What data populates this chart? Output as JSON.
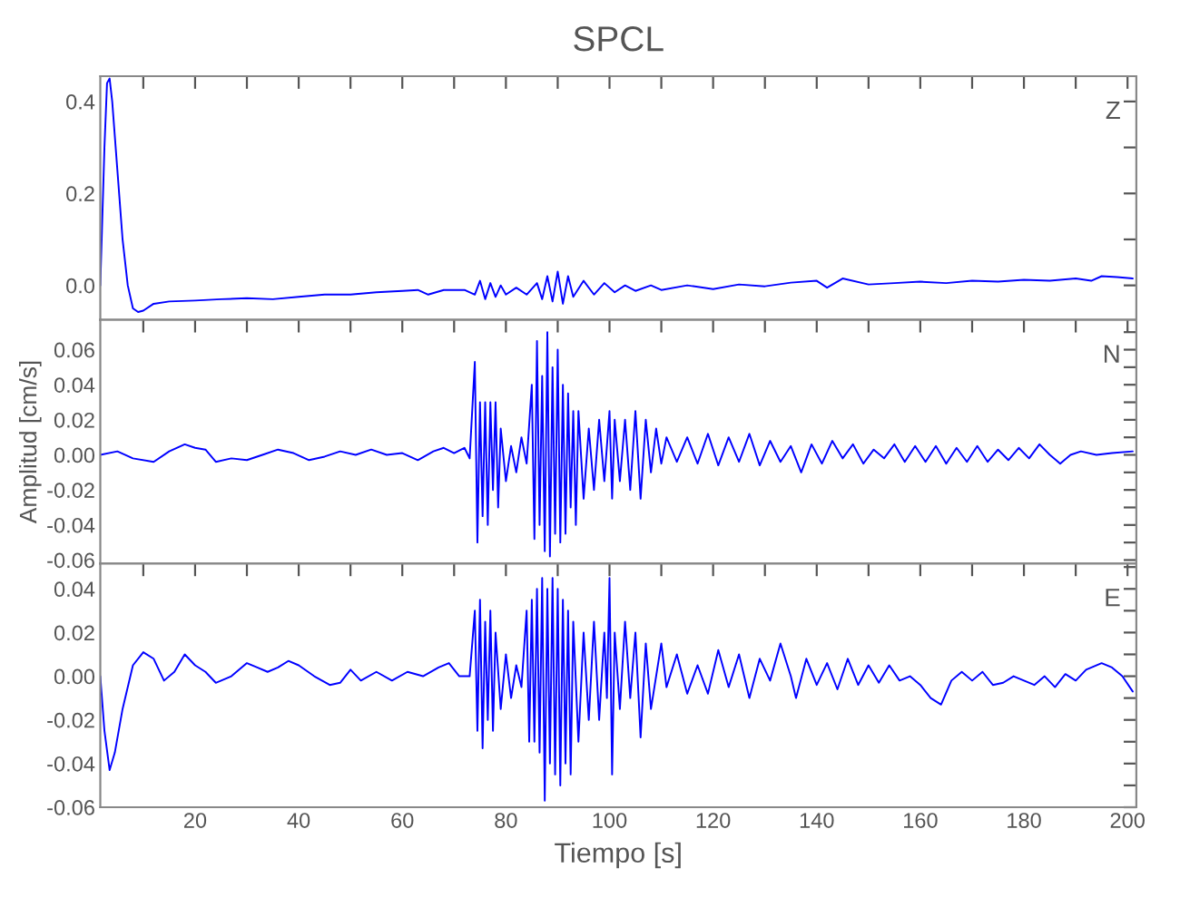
{
  "chart_data": [
    {
      "type": "line",
      "title": "SPCL",
      "annotations": [
        "Z"
      ],
      "tick_labels": "y",
      "xlim": [
        1.7,
        201.7
      ],
      "ylim": [
        -0.075,
        0.455
      ],
      "xticks": [
        {
          "value": 10,
          "label": null
        },
        {
          "value": 20,
          "label": null
        },
        {
          "value": 30,
          "label": null
        },
        {
          "value": 40,
          "label": null
        },
        {
          "value": 50,
          "label": null
        },
        {
          "value": 60,
          "label": null
        },
        {
          "value": 70,
          "label": null
        },
        {
          "value": 80,
          "label": null
        },
        {
          "value": 90,
          "label": null
        },
        {
          "value": 100,
          "label": null
        },
        {
          "value": 110,
          "label": null
        },
        {
          "value": 120,
          "label": null
        },
        {
          "value": 130,
          "label": null
        },
        {
          "value": 140,
          "label": null
        },
        {
          "value": 150,
          "label": null
        },
        {
          "value": 160,
          "label": null
        },
        {
          "value": 170,
          "label": null
        },
        {
          "value": 180,
          "label": null
        },
        {
          "value": 190,
          "label": null
        },
        {
          "value": 200,
          "label": null
        }
      ],
      "yticks": [
        {
          "value": 0.0,
          "label": "0.0"
        },
        {
          "value": 0.1,
          "label": null
        },
        {
          "value": 0.2,
          "label": "0.2"
        },
        {
          "value": 0.3,
          "label": null
        },
        {
          "value": 0.4,
          "label": "0.4"
        }
      ],
      "series": [
        {
          "color": "#0000ff",
          "x": [
            1.7,
            2.5,
            3,
            3.5,
            4,
            5,
            6,
            7,
            8,
            9,
            10,
            12,
            15,
            20,
            25,
            30,
            35,
            40,
            45,
            50,
            55,
            60,
            63,
            65,
            68,
            72,
            74,
            75,
            76,
            77,
            78,
            79,
            80,
            82,
            84,
            86,
            87,
            88,
            89,
            90,
            91,
            92,
            93,
            95,
            97,
            99,
            101,
            103,
            105,
            108,
            110,
            115,
            120,
            125,
            130,
            135,
            140,
            142,
            145,
            150,
            155,
            160,
            165,
            170,
            175,
            180,
            185,
            190,
            193,
            195,
            198,
            201
          ],
          "values": [
            0.0,
            0.3,
            0.44,
            0.45,
            0.4,
            0.25,
            0.1,
            0.0,
            -0.05,
            -0.058,
            -0.055,
            -0.04,
            -0.035,
            -0.033,
            -0.03,
            -0.028,
            -0.03,
            -0.025,
            -0.02,
            -0.02,
            -0.015,
            -0.012,
            -0.01,
            -0.02,
            -0.01,
            -0.01,
            -0.02,
            0.01,
            -0.03,
            0.005,
            -0.025,
            0.0,
            -0.02,
            -0.005,
            -0.02,
            0.005,
            -0.03,
            0.02,
            -0.035,
            0.03,
            -0.04,
            0.02,
            -0.025,
            0.01,
            -0.02,
            0.005,
            -0.015,
            0.0,
            -0.012,
            0.0,
            -0.01,
            0.0,
            -0.008,
            0.002,
            -0.002,
            0.006,
            0.01,
            -0.005,
            0.015,
            0.002,
            0.005,
            0.008,
            0.005,
            0.01,
            0.008,
            0.012,
            0.01,
            0.015,
            0.01,
            0.02,
            0.018,
            0.015
          ]
        }
      ]
    },
    {
      "type": "line",
      "ylabel": "Amplitud [cm/s]",
      "annotations": [
        "N"
      ],
      "tick_labels": "y",
      "xlim": [
        1.7,
        201.7
      ],
      "ylim": [
        -0.062,
        0.077
      ],
      "xticks": [
        {
          "value": 10,
          "label": null
        },
        {
          "value": 20,
          "label": null
        },
        {
          "value": 30,
          "label": null
        },
        {
          "value": 40,
          "label": null
        },
        {
          "value": 50,
          "label": null
        },
        {
          "value": 60,
          "label": null
        },
        {
          "value": 70,
          "label": null
        },
        {
          "value": 80,
          "label": null
        },
        {
          "value": 90,
          "label": null
        },
        {
          "value": 100,
          "label": null
        },
        {
          "value": 110,
          "label": null
        },
        {
          "value": 120,
          "label": null
        },
        {
          "value": 130,
          "label": null
        },
        {
          "value": 140,
          "label": null
        },
        {
          "value": 150,
          "label": null
        },
        {
          "value": 160,
          "label": null
        },
        {
          "value": 170,
          "label": null
        },
        {
          "value": 180,
          "label": null
        },
        {
          "value": 190,
          "label": null
        },
        {
          "value": 200,
          "label": null
        }
      ],
      "yticks": [
        {
          "value": -0.06,
          "label": "-0.06"
        },
        {
          "value": -0.05,
          "label": null
        },
        {
          "value": -0.04,
          "label": "-0.04"
        },
        {
          "value": -0.03,
          "label": null
        },
        {
          "value": -0.02,
          "label": "-0.02"
        },
        {
          "value": -0.01,
          "label": null
        },
        {
          "value": 0.0,
          "label": "0.00"
        },
        {
          "value": 0.01,
          "label": null
        },
        {
          "value": 0.02,
          "label": "0.02"
        },
        {
          "value": 0.03,
          "label": null
        },
        {
          "value": 0.04,
          "label": "0.04"
        },
        {
          "value": 0.05,
          "label": null
        },
        {
          "value": 0.06,
          "label": "0.06"
        },
        {
          "value": 0.07,
          "label": null
        }
      ],
      "series": [
        {
          "color": "#0000ff",
          "x": [
            1.7,
            5,
            8,
            12,
            15,
            18,
            20,
            22,
            24,
            27,
            30,
            33,
            36,
            39,
            42,
            45,
            48,
            51,
            54,
            57,
            60,
            63,
            66,
            68,
            70,
            72,
            73,
            74,
            74.5,
            75,
            75.5,
            76,
            76.5,
            77,
            77.5,
            78,
            78.5,
            79,
            80,
            81,
            82,
            83,
            84,
            85,
            85.5,
            86,
            86.5,
            87,
            87.5,
            88,
            88.5,
            89,
            89.5,
            90,
            90.5,
            91,
            91.5,
            92,
            92.5,
            93,
            93.5,
            94,
            95,
            96,
            97,
            98,
            99,
            100,
            100.5,
            101,
            102,
            103,
            104,
            105,
            106,
            107,
            108,
            109,
            110,
            111,
            113,
            115,
            117,
            119,
            121,
            123,
            125,
            127,
            129,
            131,
            133,
            135,
            137,
            139,
            141,
            143,
            145,
            147,
            149,
            151,
            153,
            155,
            157,
            159,
            161,
            163,
            165,
            167,
            169,
            171,
            173,
            175,
            177,
            179,
            181,
            183,
            185,
            187,
            189,
            191,
            194,
            197,
            201
          ],
          "values": [
            0.0,
            0.002,
            -0.002,
            -0.004,
            0.002,
            0.006,
            0.004,
            0.003,
            -0.004,
            -0.002,
            -0.003,
            0.0,
            0.003,
            0.001,
            -0.003,
            -0.001,
            0.002,
            0.0,
            0.003,
            0.0,
            0.001,
            -0.003,
            0.002,
            0.004,
            0.001,
            0.004,
            -0.002,
            0.053,
            -0.05,
            0.03,
            -0.035,
            0.03,
            -0.04,
            0.03,
            -0.02,
            0.03,
            -0.03,
            0.015,
            -0.015,
            0.005,
            -0.01,
            0.01,
            -0.005,
            0.04,
            -0.048,
            0.065,
            -0.04,
            0.045,
            -0.055,
            0.07,
            -0.058,
            0.05,
            -0.045,
            0.06,
            -0.05,
            0.04,
            -0.045,
            0.035,
            -0.03,
            0.025,
            -0.04,
            0.025,
            -0.025,
            0.015,
            -0.02,
            0.02,
            -0.015,
            0.025,
            -0.025,
            0.02,
            -0.015,
            0.02,
            -0.02,
            0.025,
            -0.025,
            0.02,
            -0.01,
            0.015,
            -0.005,
            0.01,
            -0.004,
            0.01,
            -0.005,
            0.012,
            -0.006,
            0.01,
            -0.004,
            0.012,
            -0.006,
            0.008,
            -0.004,
            0.005,
            -0.01,
            0.006,
            -0.005,
            0.008,
            -0.002,
            0.006,
            -0.005,
            0.003,
            -0.002,
            0.006,
            -0.004,
            0.005,
            -0.004,
            0.005,
            -0.005,
            0.004,
            -0.004,
            0.005,
            -0.004,
            0.003,
            -0.003,
            0.004,
            -0.002,
            0.006,
            0.0,
            -0.005,
            0.0,
            0.002,
            0.0,
            0.001,
            0.002
          ]
        }
      ]
    },
    {
      "type": "line",
      "xlabel": "Tiempo [s]",
      "annotations": [
        "E"
      ],
      "xlim": [
        1.7,
        201.7
      ],
      "ylim": [
        -0.06,
        0.0516
      ],
      "xticks": [
        {
          "value": 10,
          "label": null
        },
        20,
        {
          "value": 30,
          "label": null
        },
        40,
        {
          "value": 50,
          "label": null
        },
        60,
        {
          "value": 70,
          "label": null
        },
        80,
        {
          "value": 90,
          "label": null
        },
        100,
        {
          "value": 110,
          "label": null
        },
        120,
        {
          "value": 130,
          "label": null
        },
        140,
        {
          "value": 150,
          "label": null
        },
        160,
        {
          "value": 170,
          "label": null
        },
        180,
        {
          "value": 190,
          "label": null
        },
        200
      ],
      "yticks": [
        {
          "value": -0.06,
          "label": "-0.06"
        },
        {
          "value": -0.05,
          "label": null
        },
        {
          "value": -0.04,
          "label": "-0.04"
        },
        {
          "value": -0.03,
          "label": null
        },
        {
          "value": -0.02,
          "label": "-0.02"
        },
        {
          "value": -0.01,
          "label": null
        },
        {
          "value": 0.0,
          "label": "0.00"
        },
        {
          "value": 0.01,
          "label": null
        },
        {
          "value": 0.02,
          "label": "0.02"
        },
        {
          "value": 0.03,
          "label": null
        },
        {
          "value": 0.04,
          "label": "0.04"
        },
        {
          "value": 0.05,
          "label": null
        }
      ],
      "series": [
        {
          "color": "#0000ff",
          "x": [
            1.7,
            2.5,
            3.5,
            4.5,
            6,
            8,
            10,
            12,
            14,
            16,
            18,
            20,
            22,
            24,
            27,
            30,
            32,
            34,
            36,
            38,
            40,
            43,
            46,
            48,
            50,
            52,
            55,
            58,
            61,
            64,
            67,
            69,
            71,
            73,
            74,
            74.5,
            75,
            75.5,
            76,
            76.5,
            77,
            77.5,
            78,
            79,
            80,
            81,
            82,
            83,
            84,
            84.5,
            85,
            85.5,
            86,
            86.5,
            87,
            87.5,
            88,
            88.5,
            89,
            89.5,
            90,
            90.5,
            91,
            91.5,
            92,
            92.5,
            93,
            94,
            95,
            96,
            97,
            98,
            99,
            99.5,
            100,
            100.5,
            101,
            102,
            103,
            104,
            105,
            106,
            107,
            108,
            110,
            111,
            113,
            115,
            117,
            119,
            121,
            123,
            125,
            127,
            129,
            131,
            133,
            135,
            136,
            138,
            140,
            142,
            144,
            146,
            148,
            150,
            152,
            154,
            156,
            158,
            160,
            162,
            164,
            166,
            168,
            170,
            172,
            174,
            176,
            178,
            180,
            182,
            184,
            186,
            188,
            190,
            192,
            195,
            197,
            199,
            201
          ],
          "values": [
            0.0,
            -0.025,
            -0.043,
            -0.035,
            -0.015,
            0.005,
            0.011,
            0.008,
            -0.002,
            0.002,
            0.01,
            0.005,
            0.002,
            -0.003,
            0.0,
            0.006,
            0.004,
            0.002,
            0.004,
            0.007,
            0.005,
            0.0,
            -0.004,
            -0.003,
            0.003,
            -0.002,
            0.002,
            -0.002,
            0.002,
            0.0,
            0.004,
            0.006,
            0.0,
            0.0,
            0.03,
            -0.025,
            0.035,
            -0.033,
            0.025,
            -0.02,
            0.03,
            -0.025,
            0.02,
            -0.015,
            0.01,
            -0.01,
            0.005,
            -0.005,
            0.03,
            -0.03,
            0.035,
            -0.03,
            0.04,
            -0.035,
            0.045,
            -0.057,
            0.04,
            -0.04,
            0.045,
            -0.045,
            0.04,
            -0.05,
            0.035,
            -0.04,
            0.03,
            -0.045,
            0.025,
            -0.03,
            0.02,
            -0.02,
            0.025,
            -0.02,
            0.02,
            -0.01,
            0.045,
            -0.045,
            0.02,
            -0.015,
            0.025,
            -0.01,
            0.02,
            -0.028,
            0.015,
            -0.015,
            0.015,
            -0.005,
            0.01,
            -0.008,
            0.005,
            -0.008,
            0.012,
            -0.005,
            0.01,
            -0.01,
            0.008,
            -0.002,
            0.015,
            0.0,
            -0.01,
            0.008,
            -0.004,
            0.006,
            -0.006,
            0.008,
            -0.004,
            0.005,
            -0.003,
            0.005,
            -0.002,
            0.0,
            -0.004,
            -0.01,
            -0.013,
            -0.002,
            0.002,
            -0.002,
            0.002,
            -0.004,
            -0.003,
            0.0,
            -0.002,
            -0.004,
            0.0,
            -0.005,
            0.001,
            -0.002,
            0.003,
            0.006,
            0.004,
            0.0,
            -0.007
          ]
        }
      ]
    }
  ]
}
